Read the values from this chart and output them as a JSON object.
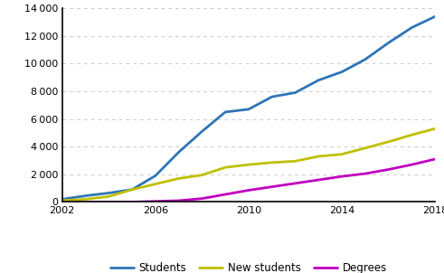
{
  "years": [
    2002,
    2003,
    2004,
    2005,
    2006,
    2007,
    2008,
    2009,
    2010,
    2011,
    2012,
    2013,
    2014,
    2015,
    2016,
    2017,
    2018
  ],
  "students": [
    200,
    450,
    650,
    900,
    1900,
    3600,
    5100,
    6500,
    6700,
    7600,
    7900,
    8800,
    9400,
    10300,
    11500,
    12600,
    13400
  ],
  "new_students": [
    100,
    200,
    400,
    900,
    1300,
    1700,
    1950,
    2500,
    2700,
    2850,
    2950,
    3300,
    3450,
    3900,
    4350,
    4850,
    5300
  ],
  "degrees": [
    0,
    0,
    0,
    0,
    50,
    100,
    250,
    550,
    850,
    1100,
    1350,
    1600,
    1850,
    2050,
    2350,
    2700,
    3100
  ],
  "students_color": "#2E75B6",
  "new_students_color": "#BFBF00",
  "degrees_color": "#C000C0",
  "ylim": [
    0,
    14000
  ],
  "yticks": [
    0,
    2000,
    4000,
    6000,
    8000,
    10000,
    12000,
    14000
  ],
  "xticks": [
    2002,
    2006,
    2010,
    2014,
    2018
  ],
  "line_width": 2.0,
  "grid_color": "#CCCCCC",
  "legend_labels": [
    "Students",
    "New students",
    "Degrees"
  ],
  "background_color": "#FFFFFF"
}
